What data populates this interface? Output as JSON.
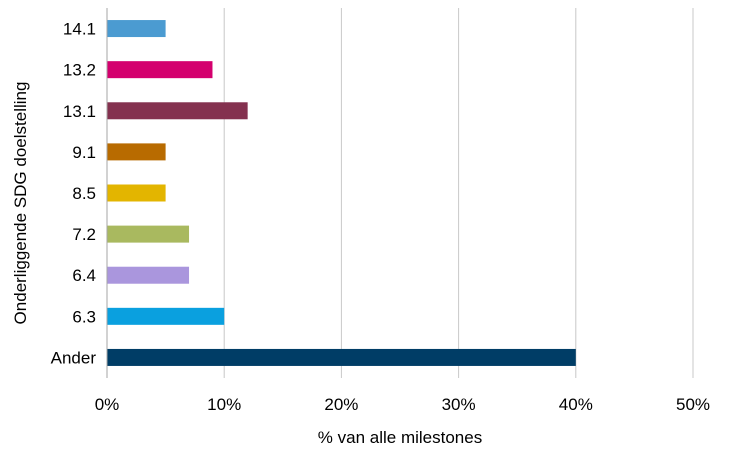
{
  "chart_data": {
    "type": "bar",
    "orientation": "horizontal",
    "title": "",
    "xlabel": "% van alle milestones",
    "ylabel": "Onderliggende SDG doelstelling",
    "categories": [
      "14.1",
      "13.2",
      "13.1",
      "9.1",
      "8.5",
      "7.2",
      "6.4",
      "6.3",
      "Ander"
    ],
    "values": [
      5,
      9,
      12,
      5,
      5,
      7,
      7,
      10,
      40
    ],
    "colors": [
      "#4b9bd1",
      "#d4006e",
      "#84314f",
      "#b86b00",
      "#e3b500",
      "#a9b95f",
      "#aa96dd",
      "#0aa0df",
      "#003d66"
    ],
    "xlim": [
      0,
      50
    ],
    "xticks": [
      "0%",
      "10%",
      "20%",
      "30%",
      "40%",
      "50%"
    ],
    "grid": true,
    "legend": "none"
  }
}
